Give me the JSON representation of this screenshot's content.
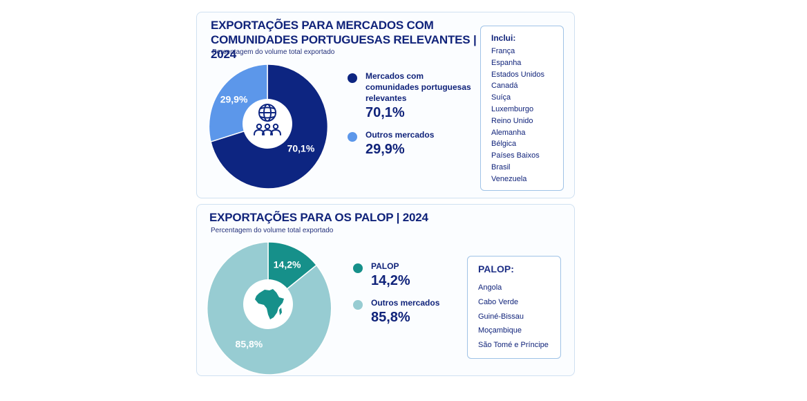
{
  "chart_data": [
    {
      "type": "pie",
      "title": "EXPORTAÇÕES PARA MERCADOS COM COMUNIDADES PORTUGUESAS RELEVANTES | 2024",
      "subtitle": "Percentagem do volume total exportado",
      "categories": [
        "Mercados com comunidades portuguesas relevantes",
        "Outros mercados"
      ],
      "values": [
        70.1,
        29.9
      ],
      "value_labels": [
        "70,1%",
        "29,9%"
      ],
      "colors": [
        "#0d2581",
        "#5c97ea"
      ],
      "center_icon": "globe-people-icon",
      "legend_position": "right",
      "list_title": "Inclui:",
      "list": [
        "França",
        "Espanha",
        "Estados Unidos",
        "Canadá",
        "Suíça",
        "Luxemburgo",
        "Reino Unido",
        "Alemanha",
        "Bélgica",
        "Países Baixos",
        "Brasil",
        "Venezuela"
      ]
    },
    {
      "type": "pie",
      "title": "EXPORTAÇÕES PARA OS PALOP | 2024",
      "subtitle": "Percentagem do volume total exportado",
      "categories": [
        "PALOP",
        "Outros mercados"
      ],
      "values": [
        14.2,
        85.8
      ],
      "value_labels": [
        "14,2%",
        "85,8%"
      ],
      "colors": [
        "#16908a",
        "#97ccd2"
      ],
      "center_icon": "africa-map-icon",
      "legend_position": "right",
      "list_title": "PALOP:",
      "list": [
        "Angola",
        "Cabo Verde",
        "Guiné-Bissau",
        "Moçambique",
        "São Tomé e Príncipe"
      ]
    }
  ]
}
